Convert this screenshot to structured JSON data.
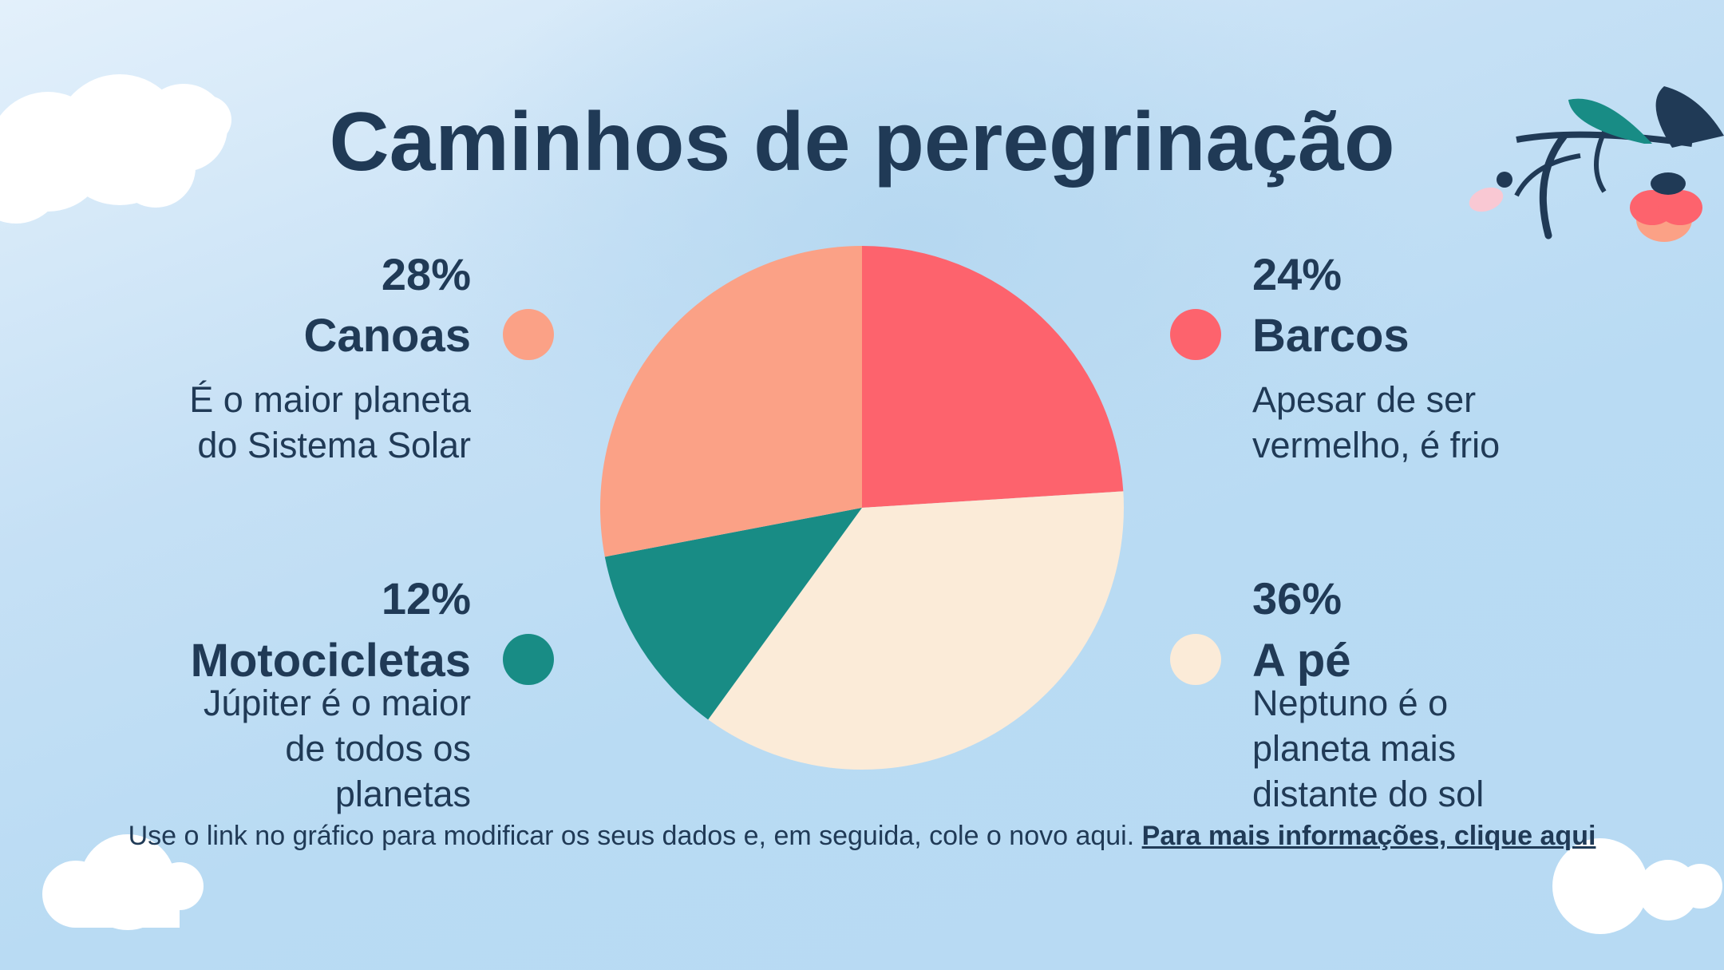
{
  "title": "Caminhos de peregrinação",
  "items": [
    {
      "percent": "28%",
      "label": "Canoas",
      "description_lines": [
        "É o maior planeta",
        "do Sistema Solar"
      ],
      "color": "#fba186"
    },
    {
      "percent": "24%",
      "label": "Barcos",
      "description_lines": [
        "Apesar de ser",
        "vermelho, é frio"
      ],
      "color": "#fd636d"
    },
    {
      "percent": "12%",
      "label": "Motocicletas",
      "description_lines": [
        "Júpiter é o maior",
        "de todos os",
        "planetas"
      ],
      "color": "#188c85"
    },
    {
      "percent": "36%",
      "label": "A pé",
      "description_lines": [
        "Neptuno é o",
        "planeta mais",
        "distante do sol"
      ],
      "color": "#fbebd8"
    }
  ],
  "chart_data": {
    "type": "pie",
    "categories": [
      "Barcos",
      "A pé",
      "Motocicletas",
      "Canoas"
    ],
    "values": [
      24,
      36,
      12,
      28
    ],
    "colors": [
      "#fd636d",
      "#fbebd8",
      "#188c85",
      "#fba186"
    ]
  },
  "footer": {
    "text": "Use o link no gráfico para modificar os seus dados e, em seguida, cole o novo aqui. ",
    "link_text": "Para mais informações, clique aqui"
  }
}
